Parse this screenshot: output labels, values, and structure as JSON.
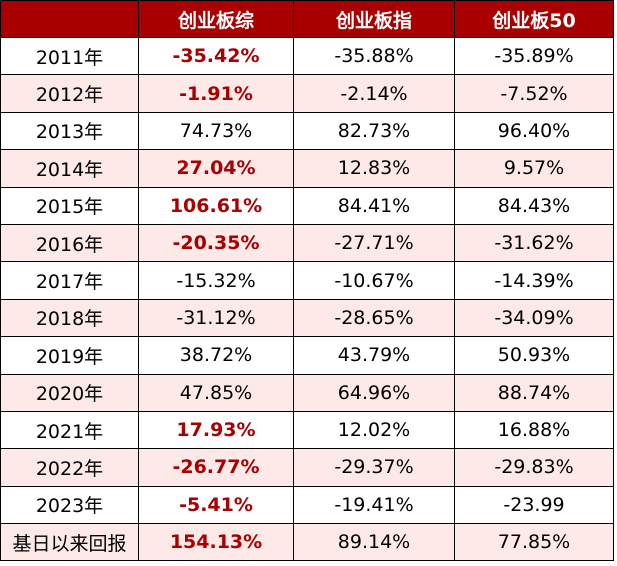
{
  "columns": [
    "",
    "创业板综",
    "创业板指",
    "创业板50"
  ],
  "rows": [
    {
      "label": "2011年",
      "values": [
        "-35.42%",
        "-35.88%",
        "-35.89%"
      ],
      "highlight": true
    },
    {
      "label": "2012年",
      "values": [
        "-1.91%",
        "-2.14%",
        "-7.52%"
      ],
      "highlight": true
    },
    {
      "label": "2013年",
      "values": [
        "74.73%",
        "82.73%",
        "96.40%"
      ],
      "highlight": false
    },
    {
      "label": "2014年",
      "values": [
        "27.04%",
        "12.83%",
        "9.57%"
      ],
      "highlight": true
    },
    {
      "label": "2015年",
      "values": [
        "106.61%",
        "84.41%",
        "84.43%"
      ],
      "highlight": true
    },
    {
      "label": "2016年",
      "values": [
        "-20.35%",
        "-27.71%",
        "-31.62%"
      ],
      "highlight": true
    },
    {
      "label": "2017年",
      "values": [
        "-15.32%",
        "-10.67%",
        "-14.39%"
      ],
      "highlight": false
    },
    {
      "label": "2018年",
      "values": [
        "-31.12%",
        "-28.65%",
        "-34.09%"
      ],
      "highlight": false
    },
    {
      "label": "2019年",
      "values": [
        "38.72%",
        "43.79%",
        "50.93%"
      ],
      "highlight": false
    },
    {
      "label": "2020年",
      "values": [
        "47.85%",
        "64.96%",
        "88.74%"
      ],
      "highlight": false
    },
    {
      "label": "2021年",
      "values": [
        "17.93%",
        "12.02%",
        "16.88%"
      ],
      "highlight": true
    },
    {
      "label": "2022年",
      "values": [
        "-26.77%",
        "-29.37%",
        "-29.83%"
      ],
      "highlight": true
    },
    {
      "label": "2023年",
      "values": [
        "-5.41%",
        "-19.41%",
        "-23.99"
      ],
      "highlight": true
    },
    {
      "label": "基日以来回报",
      "values": [
        "154.13%",
        "89.14%",
        "77.85%"
      ],
      "highlight": true
    }
  ],
  "colors": {
    "header_bg": "#a80000",
    "header_text": "#ffffff",
    "alt_row_bg": "#fde9e8",
    "highlight_text": "#a80000"
  }
}
